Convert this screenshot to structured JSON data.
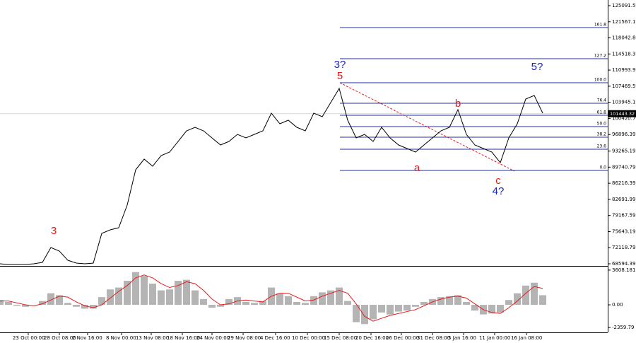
{
  "chart_data": {
    "type": "line",
    "price_series": {
      "name": "Price",
      "color": "#000000",
      "values": [
        68590,
        68435,
        68435,
        68435,
        68590,
        68899,
        72150,
        71376,
        69363,
        68744,
        68590,
        68744,
        75246,
        76020,
        76484,
        81438,
        89178,
        91500,
        89952,
        92274,
        93048,
        95370,
        97692,
        98466,
        97692,
        96144,
        94596,
        95370,
        96918,
        96144,
        96918,
        97692,
        101562,
        99240,
        100014,
        98466,
        97692,
        101562,
        100788,
        103884,
        106980,
        100014,
        96144,
        96918,
        95370,
        98466,
        96144,
        94596,
        93822,
        93048,
        94596,
        96144,
        97692,
        98466,
        102336,
        96918,
        94596,
        93822,
        93048,
        90726,
        96144,
        99240,
        104658,
        105432,
        101562
      ]
    },
    "xlim": [
      0,
      64
    ],
    "ylim": [
      68285,
      126330
    ],
    "yticks": [
      125091.59,
      121567.19,
      {
        "value": 118042.8,
        "label": "118042.80"
      },
      114518.39,
      110993.99,
      107469.59,
      103945.19,
      100420.79,
      96896.39,
      93265.19,
      89740.79,
      86216.39,
      82691.99,
      79167.59,
      75643.19,
      72118.79,
      68594.39
    ],
    "xticks": [
      {
        "value": 3.33,
        "label": "23 Oct 00:00"
      },
      {
        "value": 7,
        "label": "28 Oct 08:00"
      },
      {
        "value": 10.33,
        "label": "2 Nov 16:00"
      },
      {
        "value": 14.33,
        "label": "8 Nov 00:00"
      },
      {
        "value": 17.83,
        "label": "13 Nov 08:00"
      },
      {
        "value": 21.5,
        "label": "18 Nov 16:00"
      },
      {
        "value": 25,
        "label": "24 Nov 00:00"
      },
      {
        "value": 28.67,
        "label": "29 Nov 08:00"
      },
      {
        "value": 32.5,
        "label": "4 Dec 16:00"
      },
      {
        "value": 36.25,
        "label": "10 Dec 00:00"
      },
      {
        "value": 40,
        "label": "15 Dec 08:00"
      },
      {
        "value": 43.75,
        "label": "20 Dec 16:00"
      },
      {
        "value": 47.33,
        "label": "26 Dec 00:00"
      },
      {
        "value": 51,
        "label": "31 Dec 08:00"
      },
      {
        "value": 54.67,
        "label": "5 Jan 16:00"
      },
      {
        "value": 58.33,
        "label": "11 Jan 00:00"
      },
      {
        "value": 62.08,
        "label": "16 Jan 08:00"
      }
    ],
    "current_price": 101443.32,
    "fib_color": "#1f2f9f",
    "fib_levels": [
      {
        "label": "161.8",
        "value": 120293
      },
      {
        "label": "127.2",
        "value": 113482
      },
      {
        "label": "100.0",
        "value": 108218
      },
      {
        "label": "76.4",
        "value": 103729
      },
      {
        "label": "61.8",
        "value": 101098
      },
      {
        "label": "50.0",
        "value": 98621
      },
      {
        "label": "38.2",
        "value": 96299
      },
      {
        "label": "23.6",
        "value": 93667
      },
      {
        "label": "0.0",
        "value": 89023
      }
    ],
    "annotations": [
      {
        "text": "3",
        "color": "#e8191a"
      },
      {
        "text": "5",
        "color": "#e8191a"
      },
      {
        "text": "3?",
        "color": "#1a22c8"
      },
      {
        "text": "a",
        "color": "#e8191a"
      },
      {
        "text": "b",
        "color": "#e8191a"
      },
      {
        "text": "c",
        "color": "#e8191a"
      },
      {
        "text": "4?",
        "color": "#1a22c8"
      },
      {
        "text": "5?",
        "color": "#1a22c8"
      }
    ],
    "oscillator": {
      "histogram": {
        "color": "#b4b4b4",
        "values": [
          500,
          300,
          -100,
          -200,
          0,
          400,
          1200,
          1000,
          200,
          -200,
          -400,
          -400,
          800,
          1600,
          1800,
          2500,
          3400,
          3000,
          2200,
          1500,
          1600,
          2500,
          2600,
          1500,
          600,
          -300,
          -200,
          600,
          800,
          300,
          200,
          400,
          1800,
          1200,
          900,
          300,
          200,
          900,
          1300,
          1500,
          1800,
          400,
          -1800,
          -2000,
          -1500,
          -800,
          -1000,
          -700,
          -600,
          -200,
          300,
          600,
          800,
          900,
          1000,
          300,
          -600,
          -1000,
          -900,
          -800,
          500,
          1200,
          2000,
          2300,
          1000
        ]
      },
      "signal": {
        "color": "#e8191a",
        "values": [
          400,
          400,
          200,
          0,
          -100,
          100,
          500,
          900,
          800,
          300,
          -100,
          -300,
          0,
          700,
          1400,
          2000,
          2800,
          3100,
          2800,
          2200,
          1800,
          2000,
          2400,
          2200,
          1500,
          600,
          0,
          100,
          400,
          500,
          400,
          300,
          900,
          1200,
          1200,
          800,
          400,
          500,
          900,
          1200,
          1500,
          1200,
          100,
          -1200,
          -1700,
          -1400,
          -1100,
          -900,
          -700,
          -500,
          -100,
          300,
          600,
          800,
          900,
          700,
          100,
          -500,
          -800,
          -900,
          -300,
          400,
          1200,
          1900,
          1700
        ]
      },
      "ylim": [
        -2863,
        3896
      ],
      "yticks": [
        3608.181,
        {
          "value": 0,
          "label": "0.00"
        },
        -2359.79
      ]
    }
  }
}
